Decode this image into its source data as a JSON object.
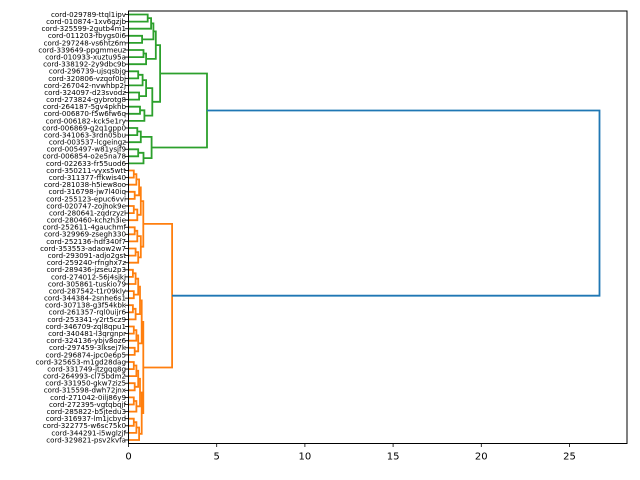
{
  "figure": {
    "background": "#ffffff",
    "kind": "dendrogram-figure"
  },
  "chart_data": {
    "type": "dendrogram",
    "orientation": "horizontal-root-right",
    "title": "",
    "xlabel": "",
    "ylabel": "",
    "grid": false,
    "x_ticks": [
      0,
      5,
      10,
      15,
      20,
      25
    ],
    "xlim": [
      0,
      28.26
    ],
    "colors": {
      "green": "#2ca02c",
      "orange": "#ff7f0e",
      "blue": "#1f77b4",
      "axis": "#000000"
    },
    "leaves": [
      {
        "label": "cord-029789-ttql1ipv",
        "cluster": "green"
      },
      {
        "label": "cord-010874-1xv6gzjb",
        "cluster": "green"
      },
      {
        "label": "cord-325599-2gutb4m1",
        "cluster": "green"
      },
      {
        "label": "cord-011203-fbygs0i6",
        "cluster": "green"
      },
      {
        "label": "cord-297248-vs6htz6m",
        "cluster": "green"
      },
      {
        "label": "cord-339649-ppgmmeuz",
        "cluster": "green"
      },
      {
        "label": "cord-010933-xuztu95a",
        "cluster": "green"
      },
      {
        "label": "cord-338192-2y9dbc9b",
        "cluster": "green"
      },
      {
        "label": "cord-296739-ujsqsbjg",
        "cluster": "green"
      },
      {
        "label": "cord-320806-vzqof0bj",
        "cluster": "green"
      },
      {
        "label": "cord-267042-nvwhbp2j",
        "cluster": "green"
      },
      {
        "label": "cord-324097-d23svodz",
        "cluster": "green"
      },
      {
        "label": "cord-273824-gybrotg8",
        "cluster": "green"
      },
      {
        "label": "cord-264187-5gv4pkhb",
        "cluster": "green"
      },
      {
        "label": "cord-006870-f5w6fw6q",
        "cluster": "green"
      },
      {
        "label": "cord-006182-kck5e1ry",
        "cluster": "green"
      },
      {
        "label": "cord-006869-g2q1gpp0",
        "cluster": "green"
      },
      {
        "label": "cord-341063-3rdn05bu",
        "cluster": "green"
      },
      {
        "label": "cord-003537-lcgeingz",
        "cluster": "green"
      },
      {
        "label": "cord-005497-w81ysjf9",
        "cluster": "green"
      },
      {
        "label": "cord-006854-o2e5na78",
        "cluster": "green"
      },
      {
        "label": "cord-022633-fr55uod6",
        "cluster": "green"
      },
      {
        "label": "cord-350211-vyxs5wtt",
        "cluster": "orange"
      },
      {
        "label": "cord-311377-ffkwis40",
        "cluster": "orange"
      },
      {
        "label": "cord-281038-h5iew8oo",
        "cluster": "orange"
      },
      {
        "label": "cord-316798-jw7l40iq",
        "cluster": "orange"
      },
      {
        "label": "cord-255123-epuc6vvi",
        "cluster": "orange"
      },
      {
        "label": "cord-020747-zojhok9e",
        "cluster": "orange"
      },
      {
        "label": "cord-280641-zqdrzyzl",
        "cluster": "orange"
      },
      {
        "label": "cord-280460-kchzh3ie",
        "cluster": "orange"
      },
      {
        "label": "cord-252611-4gauchmf",
        "cluster": "orange"
      },
      {
        "label": "cord-329969-zsegh330",
        "cluster": "orange"
      },
      {
        "label": "cord-252136-hdf340f7",
        "cluster": "orange"
      },
      {
        "label": "cord-353553-adaow2w7",
        "cluster": "orange"
      },
      {
        "label": "cord-293091-adjo2gst",
        "cluster": "orange"
      },
      {
        "label": "cord-259240-rfnghx7z",
        "cluster": "orange"
      },
      {
        "label": "cord-289436-jzseu2p3",
        "cluster": "orange"
      },
      {
        "label": "cord-274012-56j4sjkj",
        "cluster": "orange"
      },
      {
        "label": "cord-305861-tuskio79",
        "cluster": "orange"
      },
      {
        "label": "cord-287542-t1r09kly",
        "cluster": "orange"
      },
      {
        "label": "cord-344384-2snhe6s1",
        "cluster": "orange"
      },
      {
        "label": "cord-307138-g3f54kbk",
        "cluster": "orange"
      },
      {
        "label": "cord-261357-rql0uijr6",
        "cluster": "orange"
      },
      {
        "label": "cord-253341-y2rt5cz9",
        "cluster": "orange"
      },
      {
        "label": "cord-346709-zql8qpu1",
        "cluster": "orange"
      },
      {
        "label": "cord-340481-l3qrgnpr",
        "cluster": "orange"
      },
      {
        "label": "cord-324136-ybjv8oz6",
        "cluster": "orange"
      },
      {
        "label": "cord-297459-3lksej7k",
        "cluster": "orange"
      },
      {
        "label": "cord-296874-jpc0e6p5",
        "cluster": "orange"
      },
      {
        "label": "cord-325653-m1gd28dag",
        "cluster": "orange"
      },
      {
        "label": "cord-331749-jtzgqq8g",
        "cluster": "orange"
      },
      {
        "label": "cord-264993-cl75bdm2",
        "cluster": "orange"
      },
      {
        "label": "cord-331950-gkw7ziz5",
        "cluster": "orange"
      },
      {
        "label": "cord-315598-dwh72jnx",
        "cluster": "orange"
      },
      {
        "label": "cord-271042-0ilj86y9",
        "cluster": "orange"
      },
      {
        "label": "cord-272395-vgtqbqjf",
        "cluster": "orange"
      },
      {
        "label": "cord-285822-b5jtedu3",
        "cluster": "orange"
      },
      {
        "label": "cord-316937-lm1jcbyd",
        "cluster": "orange"
      },
      {
        "label": "cord-322775-w6sc75k0",
        "cluster": "orange"
      },
      {
        "label": "cord-344291-i5wglzjf",
        "cluster": "orange"
      },
      {
        "label": "cord-329821-psv2kvfa",
        "cluster": "orange"
      }
    ],
    "merges": [
      [
        "A1",
        "L1",
        "L2",
        1.09,
        "green"
      ],
      [
        "A2",
        "A1",
        "L3",
        1.28,
        "green"
      ],
      [
        "A3",
        "L4",
        "L5",
        0.77,
        "green"
      ],
      [
        "A4",
        "A2",
        "A3",
        1.41,
        "green"
      ],
      [
        "A5",
        "L6",
        "L7",
        0.85,
        "green"
      ],
      [
        "A6",
        "A5",
        "L8",
        1.0,
        "green"
      ],
      [
        "A7",
        "A4",
        "A6",
        1.55,
        "green"
      ],
      [
        "B1",
        "L9",
        "L10",
        0.55,
        "green"
      ],
      [
        "B2",
        "B1",
        "L11",
        0.8,
        "green"
      ],
      [
        "B3",
        "L12",
        "L13",
        0.6,
        "green"
      ],
      [
        "B4",
        "B2",
        "B3",
        1.0,
        "green"
      ],
      [
        "B5",
        "L14",
        "L15",
        0.65,
        "green"
      ],
      [
        "B6",
        "B5",
        "L16",
        0.9,
        "green"
      ],
      [
        "B7",
        "B4",
        "B6",
        1.35,
        "green"
      ],
      [
        "AB",
        "A7",
        "B7",
        1.79,
        "green"
      ],
      [
        "C1",
        "L17",
        "L18",
        0.5,
        "green"
      ],
      [
        "C2",
        "C1",
        "L19",
        0.7,
        "green"
      ],
      [
        "C3",
        "L20",
        "L21",
        0.55,
        "green"
      ],
      [
        "C4",
        "C3",
        "L22",
        0.85,
        "green"
      ],
      [
        "C5",
        "C2",
        "C4",
        1.31,
        "green"
      ],
      [
        "G",
        "AB",
        "C5",
        4.45,
        "green"
      ],
      [
        "D1",
        "L23",
        "L24",
        0.3,
        "orange"
      ],
      [
        "D2",
        "D1",
        "L25",
        0.45,
        "orange"
      ],
      [
        "D3",
        "L26",
        "L27",
        0.35,
        "orange"
      ],
      [
        "D4",
        "D2",
        "D3",
        0.6,
        "orange"
      ],
      [
        "D5",
        "L28",
        "L29",
        0.3,
        "orange"
      ],
      [
        "D6",
        "D5",
        "L30",
        0.5,
        "orange"
      ],
      [
        "D7",
        "D4",
        "D6",
        0.7,
        "orange"
      ],
      [
        "D8",
        "L31",
        "L32",
        0.35,
        "orange"
      ],
      [
        "D9",
        "D8",
        "L33",
        0.5,
        "orange"
      ],
      [
        "D10",
        "L34",
        "L35",
        0.4,
        "orange"
      ],
      [
        "D11",
        "D10",
        "L36",
        0.55,
        "orange"
      ],
      [
        "D12",
        "D9",
        "D11",
        0.7,
        "orange"
      ],
      [
        "D13",
        "D7",
        "D12",
        0.84,
        "orange"
      ],
      [
        "E1",
        "L37",
        "L38",
        0.25,
        "orange"
      ],
      [
        "E2",
        "E1",
        "L39",
        0.4,
        "orange"
      ],
      [
        "E3",
        "L40",
        "L41",
        0.3,
        "orange"
      ],
      [
        "E4",
        "E2",
        "E3",
        0.55,
        "orange"
      ],
      [
        "E5",
        "L42",
        "L43",
        0.25,
        "orange"
      ],
      [
        "E6",
        "E5",
        "L44",
        0.4,
        "orange"
      ],
      [
        "E7",
        "E4",
        "E6",
        0.65,
        "orange"
      ],
      [
        "E8",
        "L45",
        "L46",
        0.3,
        "orange"
      ],
      [
        "E9",
        "E8",
        "L47",
        0.45,
        "orange"
      ],
      [
        "E10",
        "L48",
        "L49",
        0.35,
        "orange"
      ],
      [
        "E11",
        "E9",
        "E10",
        0.55,
        "orange"
      ],
      [
        "E12",
        "E7",
        "E11",
        0.75,
        "orange"
      ],
      [
        "E13",
        "L50",
        "L51",
        0.3,
        "orange"
      ],
      [
        "E14",
        "E13",
        "L52",
        0.45,
        "orange"
      ],
      [
        "E15",
        "L53",
        "L54",
        0.35,
        "orange"
      ],
      [
        "E16",
        "E14",
        "E15",
        0.55,
        "orange"
      ],
      [
        "E17",
        "L55",
        "L56",
        0.3,
        "orange"
      ],
      [
        "E18",
        "E17",
        "L57",
        0.45,
        "orange"
      ],
      [
        "E19",
        "E16",
        "E18",
        0.65,
        "orange"
      ],
      [
        "E20",
        "L58",
        "L59",
        0.3,
        "orange"
      ],
      [
        "E21",
        "E20",
        "L60",
        0.45,
        "orange"
      ],
      [
        "E22",
        "E21",
        "L61",
        0.6,
        "orange"
      ],
      [
        "E23",
        "E19",
        "E22",
        0.75,
        "orange"
      ],
      [
        "E24",
        "E12",
        "E23",
        0.84,
        "orange"
      ],
      [
        "O",
        "D13",
        "E24",
        2.47,
        "orange"
      ],
      [
        "ROOT",
        "G",
        "O",
        26.7,
        "blue"
      ]
    ]
  }
}
